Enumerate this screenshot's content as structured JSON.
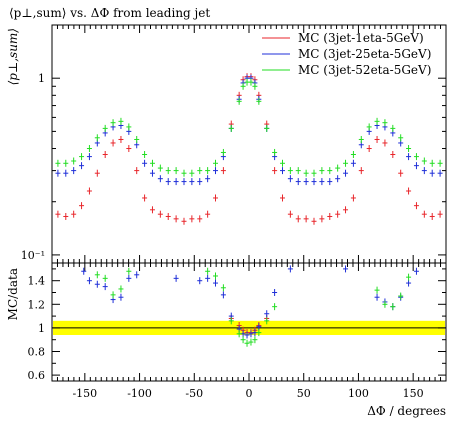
{
  "title": "⟨p⊥,sum⟩ vs. ΔΦ from leading jet",
  "chart_data": [
    {
      "type": "scatter",
      "panel": "main",
      "title": "⟨p⊥,sum⟩ vs. ΔΦ from leading jet",
      "ylabel": "⟨p⊥,sum⟩",
      "xlabel": "",
      "xlim": [
        -180,
        180
      ],
      "ylim": [
        0.09,
        2.0
      ],
      "yscale": "log",
      "ytick_labels": [
        "10⁻¹",
        "1"
      ],
      "legend_position": "top-right",
      "x": [
        -174.6,
        -167.4,
        -160.2,
        -153,
        -145.8,
        -138.6,
        -131.4,
        -124.2,
        -117,
        -109.8,
        -102.6,
        -95.4,
        -88.2,
        -81,
        -73.8,
        -66.6,
        -59.4,
        -52.2,
        -45,
        -37.8,
        -30.6,
        -23.4,
        -16.2,
        -9,
        -5.4,
        -1.8,
        1.8,
        5.4,
        9,
        16.2,
        23.4,
        30.6,
        37.8,
        45,
        52.2,
        59.4,
        66.6,
        73.8,
        81,
        88.2,
        95.4,
        102.6,
        109.8,
        117,
        124.2,
        131.4,
        138.6,
        145.8,
        153,
        160.2,
        167.4,
        174.6
      ],
      "series": [
        {
          "name": "MC (3jet-1eta-5GeV)",
          "color": "#e8262b",
          "values": [
            0.17,
            0.165,
            0.17,
            0.19,
            0.23,
            0.29,
            0.37,
            0.43,
            0.45,
            0.4,
            0.3,
            0.21,
            0.18,
            0.17,
            0.165,
            0.16,
            0.155,
            0.16,
            0.16,
            0.17,
            0.21,
            0.3,
            0.55,
            0.8,
            0.98,
            1.02,
            1.02,
            0.98,
            0.8,
            0.55,
            0.3,
            0.21,
            0.17,
            0.16,
            0.16,
            0.155,
            0.16,
            0.165,
            0.17,
            0.18,
            0.21,
            0.3,
            0.4,
            0.45,
            0.43,
            0.37,
            0.29,
            0.23,
            0.19,
            0.17,
            0.165,
            0.17
          ]
        },
        {
          "name": "MC (3jet-25eta-5GeV)",
          "color": "#1f2fd8",
          "values": [
            0.29,
            0.29,
            0.3,
            0.32,
            0.36,
            0.43,
            0.49,
            0.53,
            0.54,
            0.5,
            0.42,
            0.33,
            0.29,
            0.27,
            0.26,
            0.26,
            0.26,
            0.26,
            0.26,
            0.27,
            0.3,
            0.36,
            0.52,
            0.76,
            0.94,
            1.0,
            1.0,
            0.94,
            0.76,
            0.52,
            0.36,
            0.3,
            0.27,
            0.26,
            0.26,
            0.26,
            0.26,
            0.26,
            0.27,
            0.29,
            0.33,
            0.42,
            0.5,
            0.54,
            0.53,
            0.49,
            0.43,
            0.36,
            0.32,
            0.3,
            0.29,
            0.29
          ]
        },
        {
          "name": "MC (3jet-52eta-5GeV)",
          "color": "#22dd22",
          "values": [
            0.33,
            0.33,
            0.34,
            0.36,
            0.4,
            0.46,
            0.52,
            0.56,
            0.57,
            0.53,
            0.45,
            0.37,
            0.33,
            0.31,
            0.3,
            0.3,
            0.29,
            0.29,
            0.3,
            0.3,
            0.33,
            0.38,
            0.52,
            0.74,
            0.9,
            0.95,
            0.95,
            0.9,
            0.74,
            0.52,
            0.38,
            0.33,
            0.3,
            0.3,
            0.29,
            0.29,
            0.3,
            0.3,
            0.31,
            0.33,
            0.37,
            0.45,
            0.53,
            0.57,
            0.56,
            0.52,
            0.46,
            0.4,
            0.36,
            0.34,
            0.33,
            0.33
          ]
        }
      ]
    },
    {
      "type": "scatter",
      "panel": "ratio",
      "ylabel": "MC/data",
      "xlabel": "ΔΦ / degrees",
      "xlim": [
        -180,
        180
      ],
      "ylim": [
        0.55,
        1.55
      ],
      "ytick_labels": [
        "0.6",
        "0.8",
        "1",
        "1.2",
        "1.4"
      ],
      "xtick_labels": [
        "-150",
        "-100",
        "-50",
        "0",
        "50",
        "100",
        "150"
      ],
      "band": {
        "color": "#ffff00",
        "lower": 0.94,
        "upper": 1.06
      },
      "x": [
        -151,
        -145.8,
        -138.6,
        -131.4,
        -124.2,
        -117,
        -109.8,
        -102.6,
        -66.6,
        -45,
        -37.8,
        -30.6,
        -23.4,
        -16.2,
        -9,
        -5.4,
        -1.8,
        1.8,
        5.4,
        9,
        16.2,
        23.4,
        37.8,
        88.2,
        117,
        124.2,
        131.4,
        138.6,
        145.8,
        153
      ],
      "series": [
        {
          "name": "MC (3jet-1eta-5GeV)",
          "color": "#e8262b",
          "values": [
            null,
            null,
            null,
            null,
            null,
            null,
            null,
            null,
            null,
            null,
            null,
            null,
            null,
            1.08,
            1.02,
            0.98,
            0.96,
            0.96,
            0.98,
            1.02,
            1.08,
            null,
            null,
            null,
            null,
            null,
            null,
            null,
            null,
            null
          ]
        },
        {
          "name": "MC (3jet-25eta-5GeV)",
          "color": "#1f2fd8",
          "values": [
            1.48,
            1.4,
            1.37,
            1.35,
            1.24,
            1.26,
            1.42,
            1.45,
            1.42,
            1.4,
            1.42,
            1.38,
            1.28,
            1.1,
            0.99,
            0.95,
            0.94,
            0.95,
            0.96,
            1.01,
            1.12,
            1.3,
            1.5,
            1.5,
            1.26,
            1.22,
            1.18,
            1.26,
            1.38,
            1.48
          ]
        },
        {
          "name": "MC (3jet-52eta-5GeV)",
          "color": "#22dd22",
          "values": [
            null,
            null,
            1.45,
            1.42,
            1.28,
            1.33,
            1.48,
            null,
            null,
            null,
            1.48,
            1.44,
            1.34,
            1.06,
            0.95,
            0.9,
            0.87,
            0.88,
            0.9,
            0.96,
            1.06,
            1.18,
            null,
            null,
            1.32,
            1.2,
            1.18,
            1.27,
            1.43,
            null
          ]
        }
      ]
    }
  ]
}
